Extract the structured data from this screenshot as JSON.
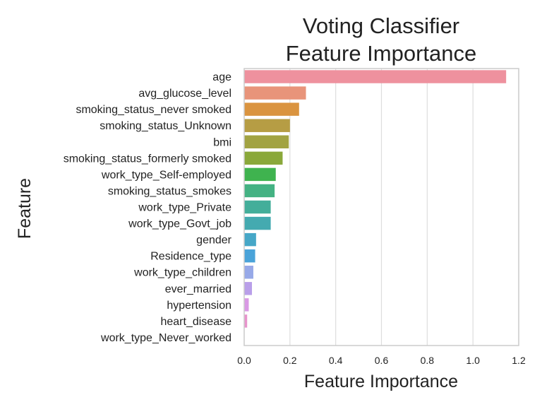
{
  "chart_data": {
    "type": "bar",
    "orientation": "horizontal",
    "title": [
      "Voting Classifier",
      "Feature Importance"
    ],
    "xlabel": "Feature Importance",
    "ylabel": "Feature",
    "xlim": [
      0,
      1.2
    ],
    "xticks": [
      "0.0",
      "0.2",
      "0.4",
      "0.6",
      "0.8",
      "1.0",
      "1.2"
    ],
    "grid": "vertical",
    "categories": [
      "age",
      "avg_glucose_level",
      "smoking_status_never smoked",
      "smoking_status_Unknown",
      "bmi",
      "smoking_status_formerly smoked",
      "work_type_Self-employed",
      "smoking_status_smokes",
      "work_type_Private",
      "work_type_Govt_job",
      "gender",
      "Residence_type",
      "work_type_children",
      "ever_married",
      "hypertension",
      "heart_disease",
      "work_type_Never_worked"
    ],
    "values": [
      1.145,
      0.27,
      0.24,
      0.2,
      0.195,
      0.168,
      0.138,
      0.133,
      0.116,
      0.116,
      0.052,
      0.048,
      0.04,
      0.034,
      0.02,
      0.013,
      0.0
    ],
    "colors": [
      "#ee919e",
      "#e8947a",
      "#da9440",
      "#b69d44",
      "#a2a342",
      "#8aa83a",
      "#3fb34f",
      "#44b283",
      "#43ae9a",
      "#44aab0",
      "#46a7c7",
      "#4aa3d9",
      "#97a9e8",
      "#b99fe9",
      "#d999e5",
      "#e894cc",
      "#eb8fb4"
    ]
  }
}
